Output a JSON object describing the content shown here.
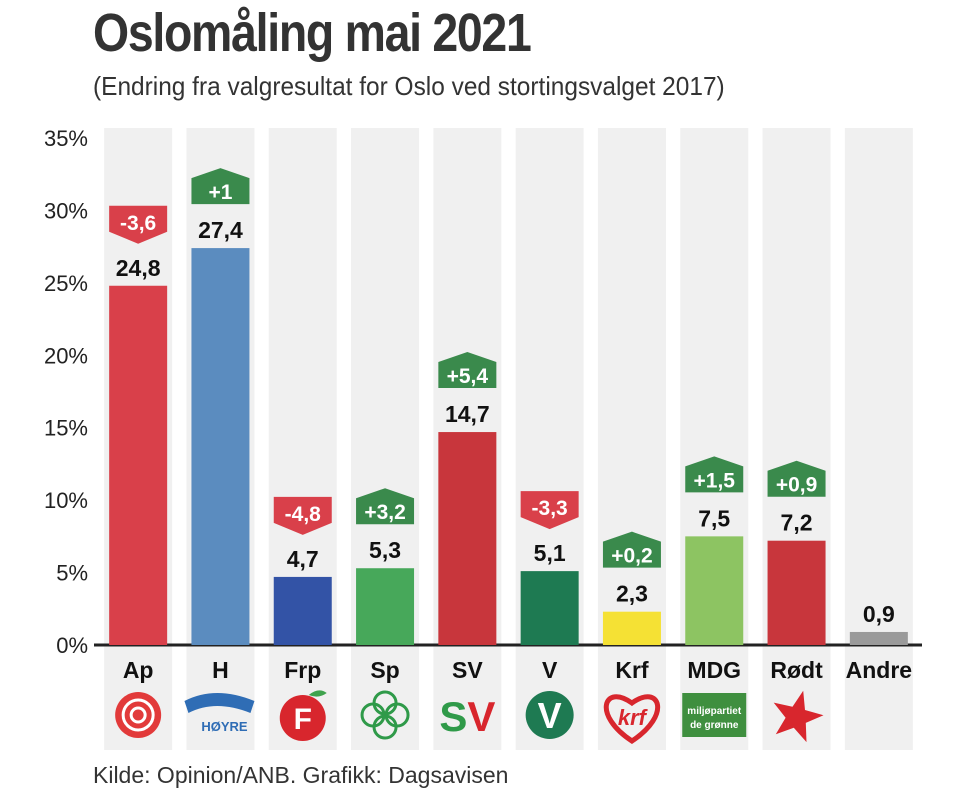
{
  "title": "Oslomåling mai 2021",
  "subtitle": "(Endring fra valgresultat for Oslo ved stortingsvalget 2017)",
  "source": "Kilde: Opinion/ANB. Grafikk: Dagsavisen",
  "chart_data": {
    "type": "bar",
    "categories": [
      "Ap",
      "H",
      "Frp",
      "Sp",
      "SV",
      "V",
      "Krf",
      "MDG",
      "Rødt",
      "Andre"
    ],
    "values": [
      24.8,
      27.4,
      4.7,
      5.3,
      14.7,
      5.1,
      2.3,
      7.5,
      7.2,
      0.9
    ],
    "value_labels": [
      "24,8",
      "27,4",
      "4,7",
      "5,3",
      "14,7",
      "5,1",
      "2,3",
      "7,5",
      "7,2",
      "0,9"
    ],
    "changes": [
      "-3,6",
      "+1",
      "-4,8",
      "+3,2",
      "+5,4",
      "-3,3",
      "+0,2",
      "+1,5",
      "+0,9",
      ""
    ],
    "colors": [
      "#d9404a",
      "#5b8cbf",
      "#3353a6",
      "#47a85a",
      "#c8363c",
      "#1e7a52",
      "#f5e134",
      "#8dc462",
      "#c8363c",
      "#9a9a9a"
    ],
    "change_colors": {
      "up": "#3a8a4c",
      "down": "#d9404a"
    },
    "ylim": [
      0,
      35
    ],
    "yticks": [
      "0%",
      "5%",
      "10%",
      "15%",
      "20%",
      "25%",
      "30%",
      "35%"
    ],
    "grid": false,
    "legend": "none",
    "logos": [
      {
        "name": "ap-rose-icon"
      },
      {
        "name": "hoyre-logo",
        "text": "HØYRE"
      },
      {
        "name": "frp-apple-icon",
        "text": "F"
      },
      {
        "name": "sp-clover-icon"
      },
      {
        "name": "sv-logo",
        "text": "SV"
      },
      {
        "name": "venstre-logo",
        "text": "V"
      },
      {
        "name": "krf-heart-icon",
        "text": "krf"
      },
      {
        "name": "mdg-logo",
        "text": "miljøpartiet de grønne"
      },
      {
        "name": "rodt-star-icon"
      },
      {
        "name": "none"
      }
    ]
  }
}
